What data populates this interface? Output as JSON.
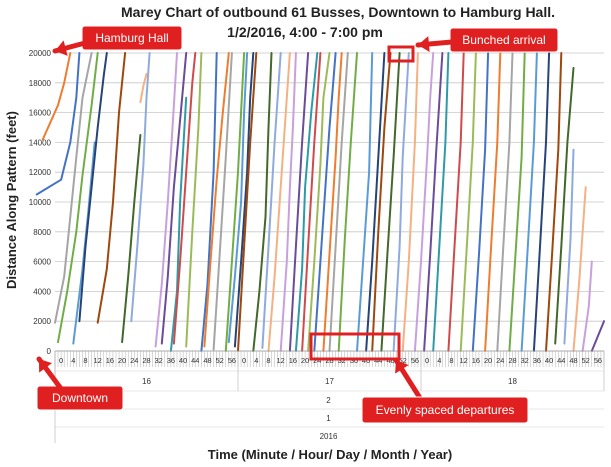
{
  "chart_data": {
    "type": "line",
    "title_line1": "Marey Chart of outbound 61 Busses, Downtown to Hamburg Hall.",
    "title_line2": "1/2/2016, 4:00 - 7:00 pm",
    "xlabel": "Time (Minute / Hour/ Day / Month / Year)",
    "ylabel": "Distance Along Pattern (feet)",
    "ylim": [
      0,
      20000
    ],
    "y_ticks": [
      "0",
      "2000",
      "4000",
      "6000",
      "8000",
      "10000",
      "12000",
      "14000",
      "16000",
      "18000",
      "20000"
    ],
    "xlim": [
      0,
      180
    ],
    "minute_ticks": [
      "0",
      "4",
      "8",
      "12",
      "16",
      "20",
      "24",
      "28",
      "32",
      "36",
      "40",
      "44",
      "48",
      "52",
      "56",
      "0",
      "4",
      "8",
      "12",
      "16",
      "20",
      "24",
      "28",
      "32",
      "36",
      "40",
      "44",
      "48",
      "52",
      "56",
      "0",
      "4",
      "8",
      "12",
      "16",
      "20",
      "24",
      "28",
      "32",
      "36",
      "40",
      "44",
      "48",
      "52",
      "56"
    ],
    "hour_labels": [
      "16",
      "17",
      "18"
    ],
    "day": "2",
    "month": "1",
    "year": "2016",
    "grid": true,
    "colors": [
      "#4472c4",
      "#ed7d31",
      "#a5a5a5",
      "#70ad47",
      "#5b9bd5",
      "#264478",
      "#9e480e",
      "#43682b",
      "#8faadc",
      "#f4b183",
      "#c9a0dc",
      "#6b4c9a",
      "#2e9aa8",
      "#cf4b4b",
      "#9bbb59"
    ],
    "series": [
      {
        "x": [
          -6,
          2,
          5,
          7,
          8
        ],
        "y": [
          10500,
          11500,
          14000,
          17000,
          20000
        ]
      },
      {
        "x": [
          -4,
          1,
          3,
          5
        ],
        "y": [
          14200,
          16500,
          18000,
          20000
        ]
      },
      {
        "x": [
          0,
          3,
          5,
          7,
          9,
          12
        ],
        "y": [
          1900,
          5000,
          9000,
          13000,
          17000,
          20000
        ]
      },
      {
        "x": [
          1,
          4,
          7,
          9,
          12,
          14
        ],
        "y": [
          600,
          4000,
          8000,
          11800,
          16500,
          20000
        ]
      },
      {
        "x": [
          6,
          9,
          11,
          13
        ],
        "y": [
          500,
          5500,
          9500,
          14000
        ]
      },
      {
        "x": [
          8,
          10,
          12,
          14,
          16,
          17
        ],
        "y": [
          2000,
          7000,
          11000,
          15000,
          18500,
          20000
        ]
      },
      {
        "x": [
          14,
          17,
          19,
          21,
          23
        ],
        "y": [
          1900,
          5500,
          10000,
          16000,
          20000
        ]
      },
      {
        "x": [
          22,
          24,
          26,
          28
        ],
        "y": [
          600,
          5000,
          10000,
          14500
        ]
      },
      {
        "x": [
          25,
          27,
          29,
          30,
          31
        ],
        "y": [
          2000,
          7000,
          12500,
          17000,
          20000
        ]
      },
      {
        "x": [
          28,
          29,
          30
        ],
        "y": [
          16700,
          17800,
          18600
        ]
      },
      {
        "x": [
          33,
          35,
          37,
          39,
          40
        ],
        "y": [
          300,
          4500,
          10000,
          16500,
          20000
        ]
      },
      {
        "x": [
          35,
          37,
          39,
          41,
          43
        ],
        "y": [
          500,
          5000,
          11000,
          15500,
          20000
        ]
      },
      {
        "x": [
          38,
          40,
          41,
          43
        ],
        "y": [
          0,
          4000,
          10000,
          17000
        ]
      },
      {
        "x": [
          39,
          41,
          43,
          45,
          46
        ],
        "y": [
          500,
          6000,
          12000,
          18000,
          20000
        ]
      },
      {
        "x": [
          43,
          45,
          47,
          48
        ],
        "y": [
          300,
          8000,
          15000,
          20000
        ]
      },
      {
        "x": [
          48,
          50,
          52,
          53
        ],
        "y": [
          0,
          4500,
          12000,
          20000
        ]
      },
      {
        "x": [
          49,
          51,
          53,
          55,
          57
        ],
        "y": [
          300,
          6000,
          11500,
          16000,
          20000
        ]
      },
      {
        "x": [
          52,
          54,
          56,
          58
        ],
        "y": [
          100,
          6500,
          13000,
          20000
        ]
      },
      {
        "x": [
          56,
          58,
          60,
          62
        ],
        "y": [
          0,
          6000,
          12000,
          20000
        ]
      },
      {
        "x": [
          57,
          59,
          61,
          62,
          63
        ],
        "y": [
          600,
          5000,
          10000,
          16000,
          20000
        ]
      },
      {
        "x": [
          59,
          61,
          63,
          64,
          65
        ],
        "y": [
          300,
          6000,
          12000,
          17000,
          20000
        ]
      },
      {
        "x": [
          60,
          62,
          64,
          66
        ],
        "y": [
          0,
          7000,
          14000,
          20000
        ]
      },
      {
        "x": [
          65,
          67,
          69,
          70,
          71
        ],
        "y": [
          0,
          4000,
          9000,
          15000,
          20000
        ]
      },
      {
        "x": [
          68,
          70,
          72,
          74
        ],
        "y": [
          200,
          7000,
          14000,
          20000
        ]
      },
      {
        "x": [
          70,
          72,
          74,
          76,
          77
        ],
        "y": [
          0,
          5000,
          11000,
          17000,
          20000
        ]
      },
      {
        "x": [
          74,
          76,
          77,
          78,
          79
        ],
        "y": [
          0,
          6000,
          11000,
          15000,
          20000
        ]
      },
      {
        "x": [
          77,
          79,
          81,
          83
        ],
        "y": [
          0,
          7000,
          14000,
          20000
        ]
      },
      {
        "x": [
          79,
          81,
          82,
          84,
          86
        ],
        "y": [
          0,
          5500,
          11000,
          16000,
          20000
        ]
      },
      {
        "x": [
          81,
          83,
          85,
          87
        ],
        "y": [
          0,
          7000,
          14000,
          20000
        ]
      },
      {
        "x": [
          83,
          85,
          87,
          88,
          90
        ],
        "y": [
          0,
          6000,
          12500,
          17000,
          20000
        ]
      },
      {
        "x": [
          85,
          87,
          89,
          90,
          91,
          92
        ],
        "y": [
          0,
          6000,
          12000,
          15000,
          17500,
          20000
        ]
      },
      {
        "x": [
          88,
          90,
          92,
          93,
          94
        ],
        "y": [
          0,
          6500,
          13000,
          17000,
          20000
        ]
      },
      {
        "x": [
          90,
          92,
          94,
          96
        ],
        "y": [
          0,
          7000,
          14000,
          20000
        ]
      },
      {
        "x": [
          93,
          95,
          97,
          99
        ],
        "y": [
          0,
          7500,
          14000,
          20000
        ]
      },
      {
        "x": [
          99,
          101,
          103,
          104
        ],
        "y": [
          0,
          6000,
          12000,
          20000
        ]
      },
      {
        "x": [
          102,
          104,
          106,
          108
        ],
        "y": [
          0,
          6000,
          13000,
          20000
        ]
      },
      {
        "x": [
          104,
          106,
          108,
          110
        ],
        "y": [
          0,
          8000,
          15000,
          20000
        ]
      },
      {
        "x": [
          107,
          109,
          111,
          113
        ],
        "y": [
          0,
          6500,
          13000,
          20000
        ]
      },
      {
        "x": [
          111,
          113,
          114,
          116
        ],
        "y": [
          0,
          7000,
          13000,
          20000
        ]
      },
      {
        "x": [
          114,
          116,
          118,
          119
        ],
        "y": [
          0,
          6000,
          14000,
          20000
        ]
      },
      {
        "x": [
          118,
          120,
          122,
          123,
          124
        ],
        "y": [
          0,
          6000,
          13000,
          17000,
          20000
        ]
      },
      {
        "x": [
          121,
          123,
          125,
          127
        ],
        "y": [
          0,
          6500,
          13500,
          20000
        ]
      },
      {
        "x": [
          124,
          126,
          128,
          129
        ],
        "y": [
          0,
          7000,
          14000,
          20000
        ]
      },
      {
        "x": [
          129,
          131,
          133,
          134
        ],
        "y": [
          0,
          7000,
          14000,
          20000
        ]
      },
      {
        "x": [
          133,
          135,
          137,
          138
        ],
        "y": [
          0,
          7000,
          14000,
          20000
        ]
      },
      {
        "x": [
          137,
          139,
          141,
          142
        ],
        "y": [
          0,
          6500,
          13500,
          20000
        ]
      },
      {
        "x": [
          141,
          143,
          145,
          146
        ],
        "y": [
          0,
          7000,
          14000,
          20000
        ]
      },
      {
        "x": [
          145,
          147,
          149,
          150
        ],
        "y": [
          0,
          7000,
          14000,
          20000
        ]
      },
      {
        "x": [
          149,
          151,
          153,
          154
        ],
        "y": [
          0,
          6500,
          13000,
          20000
        ]
      },
      {
        "x": [
          153,
          155,
          157,
          158
        ],
        "y": [
          0,
          7000,
          14000,
          20000
        ]
      },
      {
        "x": [
          157,
          159,
          161,
          162
        ],
        "y": [
          0,
          7000,
          14000,
          20000
        ]
      },
      {
        "x": [
          161,
          163,
          165,
          166
        ],
        "y": [
          0,
          6500,
          13500,
          20000
        ]
      },
      {
        "x": [
          164,
          166,
          168,
          170
        ],
        "y": [
          500,
          7000,
          14000,
          19000
        ]
      },
      {
        "x": [
          167,
          169,
          170
        ],
        "y": [
          500,
          7500,
          13500
        ]
      },
      {
        "x": [
          170,
          172,
          174
        ],
        "y": [
          0,
          5000,
          11000
        ]
      },
      {
        "x": [
          173,
          175,
          176
        ],
        "y": [
          0,
          3000,
          6000
        ]
      },
      {
        "x": [
          176,
          178,
          180
        ],
        "y": [
          0,
          1000,
          2000
        ]
      }
    ]
  },
  "annotations": {
    "hamburg_hall": "Hamburg Hall",
    "bunched_arrival": "Bunched arrival",
    "downtown": "Downtown",
    "evenly_spaced": "Evenly spaced departures"
  },
  "annotation_color": "#e02020"
}
